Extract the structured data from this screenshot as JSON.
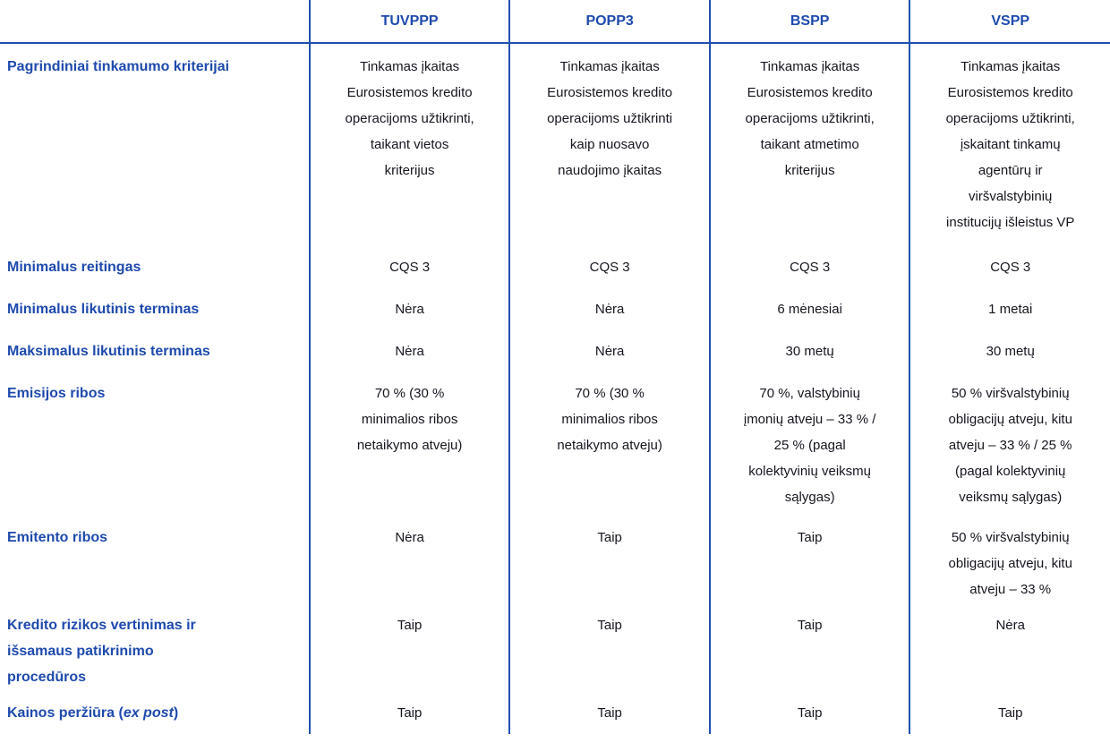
{
  "colors": {
    "accent_blue": "#1e4aad",
    "line_blue": "#2150b0",
    "body_text": "#15151f"
  },
  "table": {
    "columns": [
      "",
      "TUVPPP",
      "POPP3",
      "BSPP",
      "VSPP"
    ],
    "rows": [
      {
        "label": "Pagrindiniai tinkamumo kriterijai",
        "values": [
          "Tinkamas įkaitas\nEurosistemos kredito\noperacijoms užtikrinti,\ntaikant vietos\nkriterijus",
          "Tinkamas įkaitas\nEurosistemos kredito\noperacijoms užtikrinti\nkaip nuosavo\nnaudojimo įkaitas",
          "Tinkamas įkaitas\nEurosistemos kredito\noperacijoms užtikrinti,\ntaikant atmetimo\nkriterijus",
          "Tinkamas įkaitas\nEurosistemos kredito\noperacijoms užtikrinti,\nįskaitant tinkamų\nagentūrų ir\nviršvalstybinių\ninstitucijų išleistus VP"
        ]
      },
      {
        "label": "Minimalus reitingas",
        "values": [
          "CQS 3",
          "CQS 3",
          "CQS 3",
          "CQS 3"
        ]
      },
      {
        "label": "Minimalus likutinis terminas",
        "values": [
          "Nėra",
          "Nėra",
          "6 mėnesiai",
          "1 metai"
        ]
      },
      {
        "label": "Maksimalus likutinis terminas",
        "values": [
          "Nėra",
          "Nėra",
          "30 metų",
          "30 metų"
        ]
      },
      {
        "label": "Emisijos ribos",
        "values": [
          "70 % (30 %\nminimalios ribos\nnetaikymo atveju)",
          "70 % (30 %\nminimalios ribos\nnetaikymo atveju)",
          "70 %, valstybinių\nįmonių atveju – 33 % /\n25 % (pagal\nkolektyvinių veiksmų\nsąlygas)",
          "50 % viršvalstybinių\nobligacijų atveju, kitu\natveju – 33 % / 25 %\n(pagal kolektyvinių\nveiksmų sąlygas)"
        ]
      },
      {
        "label": "Emitento ribos",
        "values": [
          "Nėra",
          "Taip",
          "Taip",
          "50 % viršvalstybinių\nobligacijų atveju, kitu\natveju – 33 %"
        ]
      },
      {
        "label": "Kredito rizikos vertinimas ir\nišsamaus patikrinimo\nprocedūros",
        "values": [
          "Taip",
          "Taip",
          "Taip",
          "Nėra"
        ]
      },
      {
        "label_prefix": "Kainos peržiūra (",
        "label_italic": "ex post",
        "label_suffix": ")",
        "values": [
          "Taip",
          "Taip",
          "Taip",
          "Taip"
        ]
      }
    ]
  }
}
